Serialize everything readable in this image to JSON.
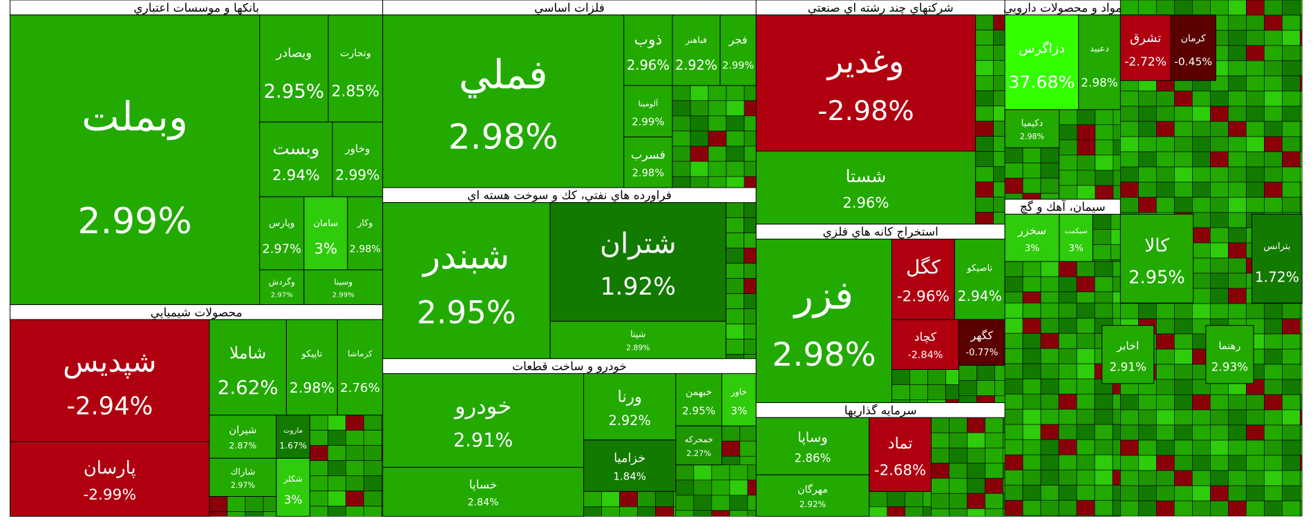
{
  "chart_data": {
    "type": "treemap",
    "sectors": [
      {
        "title": "بانكها و موسسات اعتباري",
        "names": [
          "وبملت",
          "وبصادر",
          "وتجارت",
          "وبست",
          "وخاور",
          "وپارس",
          "سامان",
          "وكار",
          "وگردش",
          "وسينا"
        ],
        "values": [
          2.99,
          2.95,
          2.85,
          2.94,
          2.99,
          2.97,
          3,
          2.98,
          2.97,
          2.99
        ],
        "value_labels": [
          "2.99%",
          "2.95%",
          "2.85%",
          "2.94%",
          "2.99%",
          "2.97%",
          "3%",
          "2.98%",
          "2.97%",
          "2.99%"
        ]
      },
      {
        "title": "محصولات شيميايي",
        "names": [
          "شپديس",
          "پارسان",
          "شاملا",
          "تاپيكو",
          "كرماشا",
          "شيران",
          "شاراك",
          "ماروت",
          "شكلر"
        ],
        "values": [
          -2.94,
          -2.99,
          2.62,
          2.98,
          2.76,
          2.87,
          2.97,
          1.67,
          3
        ],
        "value_labels": [
          "-2.94%",
          "-2.99%",
          "2.62%",
          "2.98%",
          "2.76%",
          "2.87%",
          "2.97%",
          "1.67%",
          "3%"
        ]
      },
      {
        "title": "فلزات اساسي",
        "names": [
          "فملي",
          "ذوب",
          "فباهنر",
          "فجر",
          "آلومينا",
          "فسرب"
        ],
        "values": [
          2.98,
          2.96,
          2.92,
          2.99,
          2.99,
          2.98
        ],
        "value_labels": [
          "2.98%",
          "2.96%",
          "2.92%",
          "2.99%",
          "2.99%",
          "2.98%"
        ]
      },
      {
        "title": "فراورده هاي نفتي، كك و سوخت هسته اي",
        "names": [
          "شبندر",
          "شتران",
          "شپنا"
        ],
        "values": [
          2.95,
          1.92,
          2.89
        ],
        "value_labels": [
          "2.95%",
          "1.92%",
          "2.89%"
        ]
      },
      {
        "title": "خودرو و ساخت قطعات",
        "names": [
          "خودرو",
          "خساپا",
          "ورنا",
          "خزاميا",
          "خبهمن",
          "خاور",
          "خمحركه"
        ],
        "values": [
          2.91,
          2.84,
          2.92,
          1.84,
          2.95,
          3,
          2.27
        ],
        "value_labels": [
          "2.91%",
          "2.84%",
          "2.92%",
          "1.84%",
          "2.95%",
          "3%",
          "2.27%"
        ]
      },
      {
        "title": "شركتهاي چند رشته اي صنعتي",
        "names": [
          "وغدير",
          "شستا"
        ],
        "values": [
          -2.98,
          2.96
        ],
        "value_labels": [
          "-2.98%",
          "2.96%"
        ]
      },
      {
        "title": "استخراج كانه هاي فلزي",
        "names": [
          "فزر",
          "كگل",
          "تاصيكو",
          "كچاد",
          "كگهر"
        ],
        "values": [
          2.98,
          -2.96,
          2.94,
          -2.84,
          -0.77
        ],
        "value_labels": [
          "2.98%",
          "-2.96%",
          "2.94%",
          "-2.84%",
          "-0.77%"
        ]
      },
      {
        "title": "سرمايه گذاريها",
        "names": [
          "وساپا",
          "مهرگان",
          "تماد"
        ],
        "values": [
          2.86,
          2.92,
          -2.68
        ],
        "value_labels": [
          "2.86%",
          "2.92%",
          "-2.68%"
        ]
      },
      {
        "title": "مواد و محصولات دارويي",
        "names": [
          "دزاگرس",
          "دعبيد",
          "دكيميا"
        ],
        "values": [
          37.68,
          2.98,
          2.98
        ],
        "value_labels": [
          "37.68%",
          "2.98%",
          "2.98%"
        ]
      },
      {
        "title": "سيمان، آهك و گچ",
        "names": [
          "سخزر",
          "سيكمت"
        ],
        "values": [
          3,
          3
        ],
        "value_labels": [
          "3%",
          "3%"
        ]
      },
      {
        "names": [
          "تشرق",
          "كرمان",
          "كالا",
          "بترانس",
          "اخابر",
          "رهنما"
        ],
        "values": [
          -2.72,
          -0.45,
          2.95,
          1.72,
          2.91,
          2.93
        ],
        "value_labels": [
          "-2.72%",
          "-0.45%",
          "2.95%",
          "1.72%",
          "2.91%",
          "2.93%"
        ]
      }
    ]
  }
}
